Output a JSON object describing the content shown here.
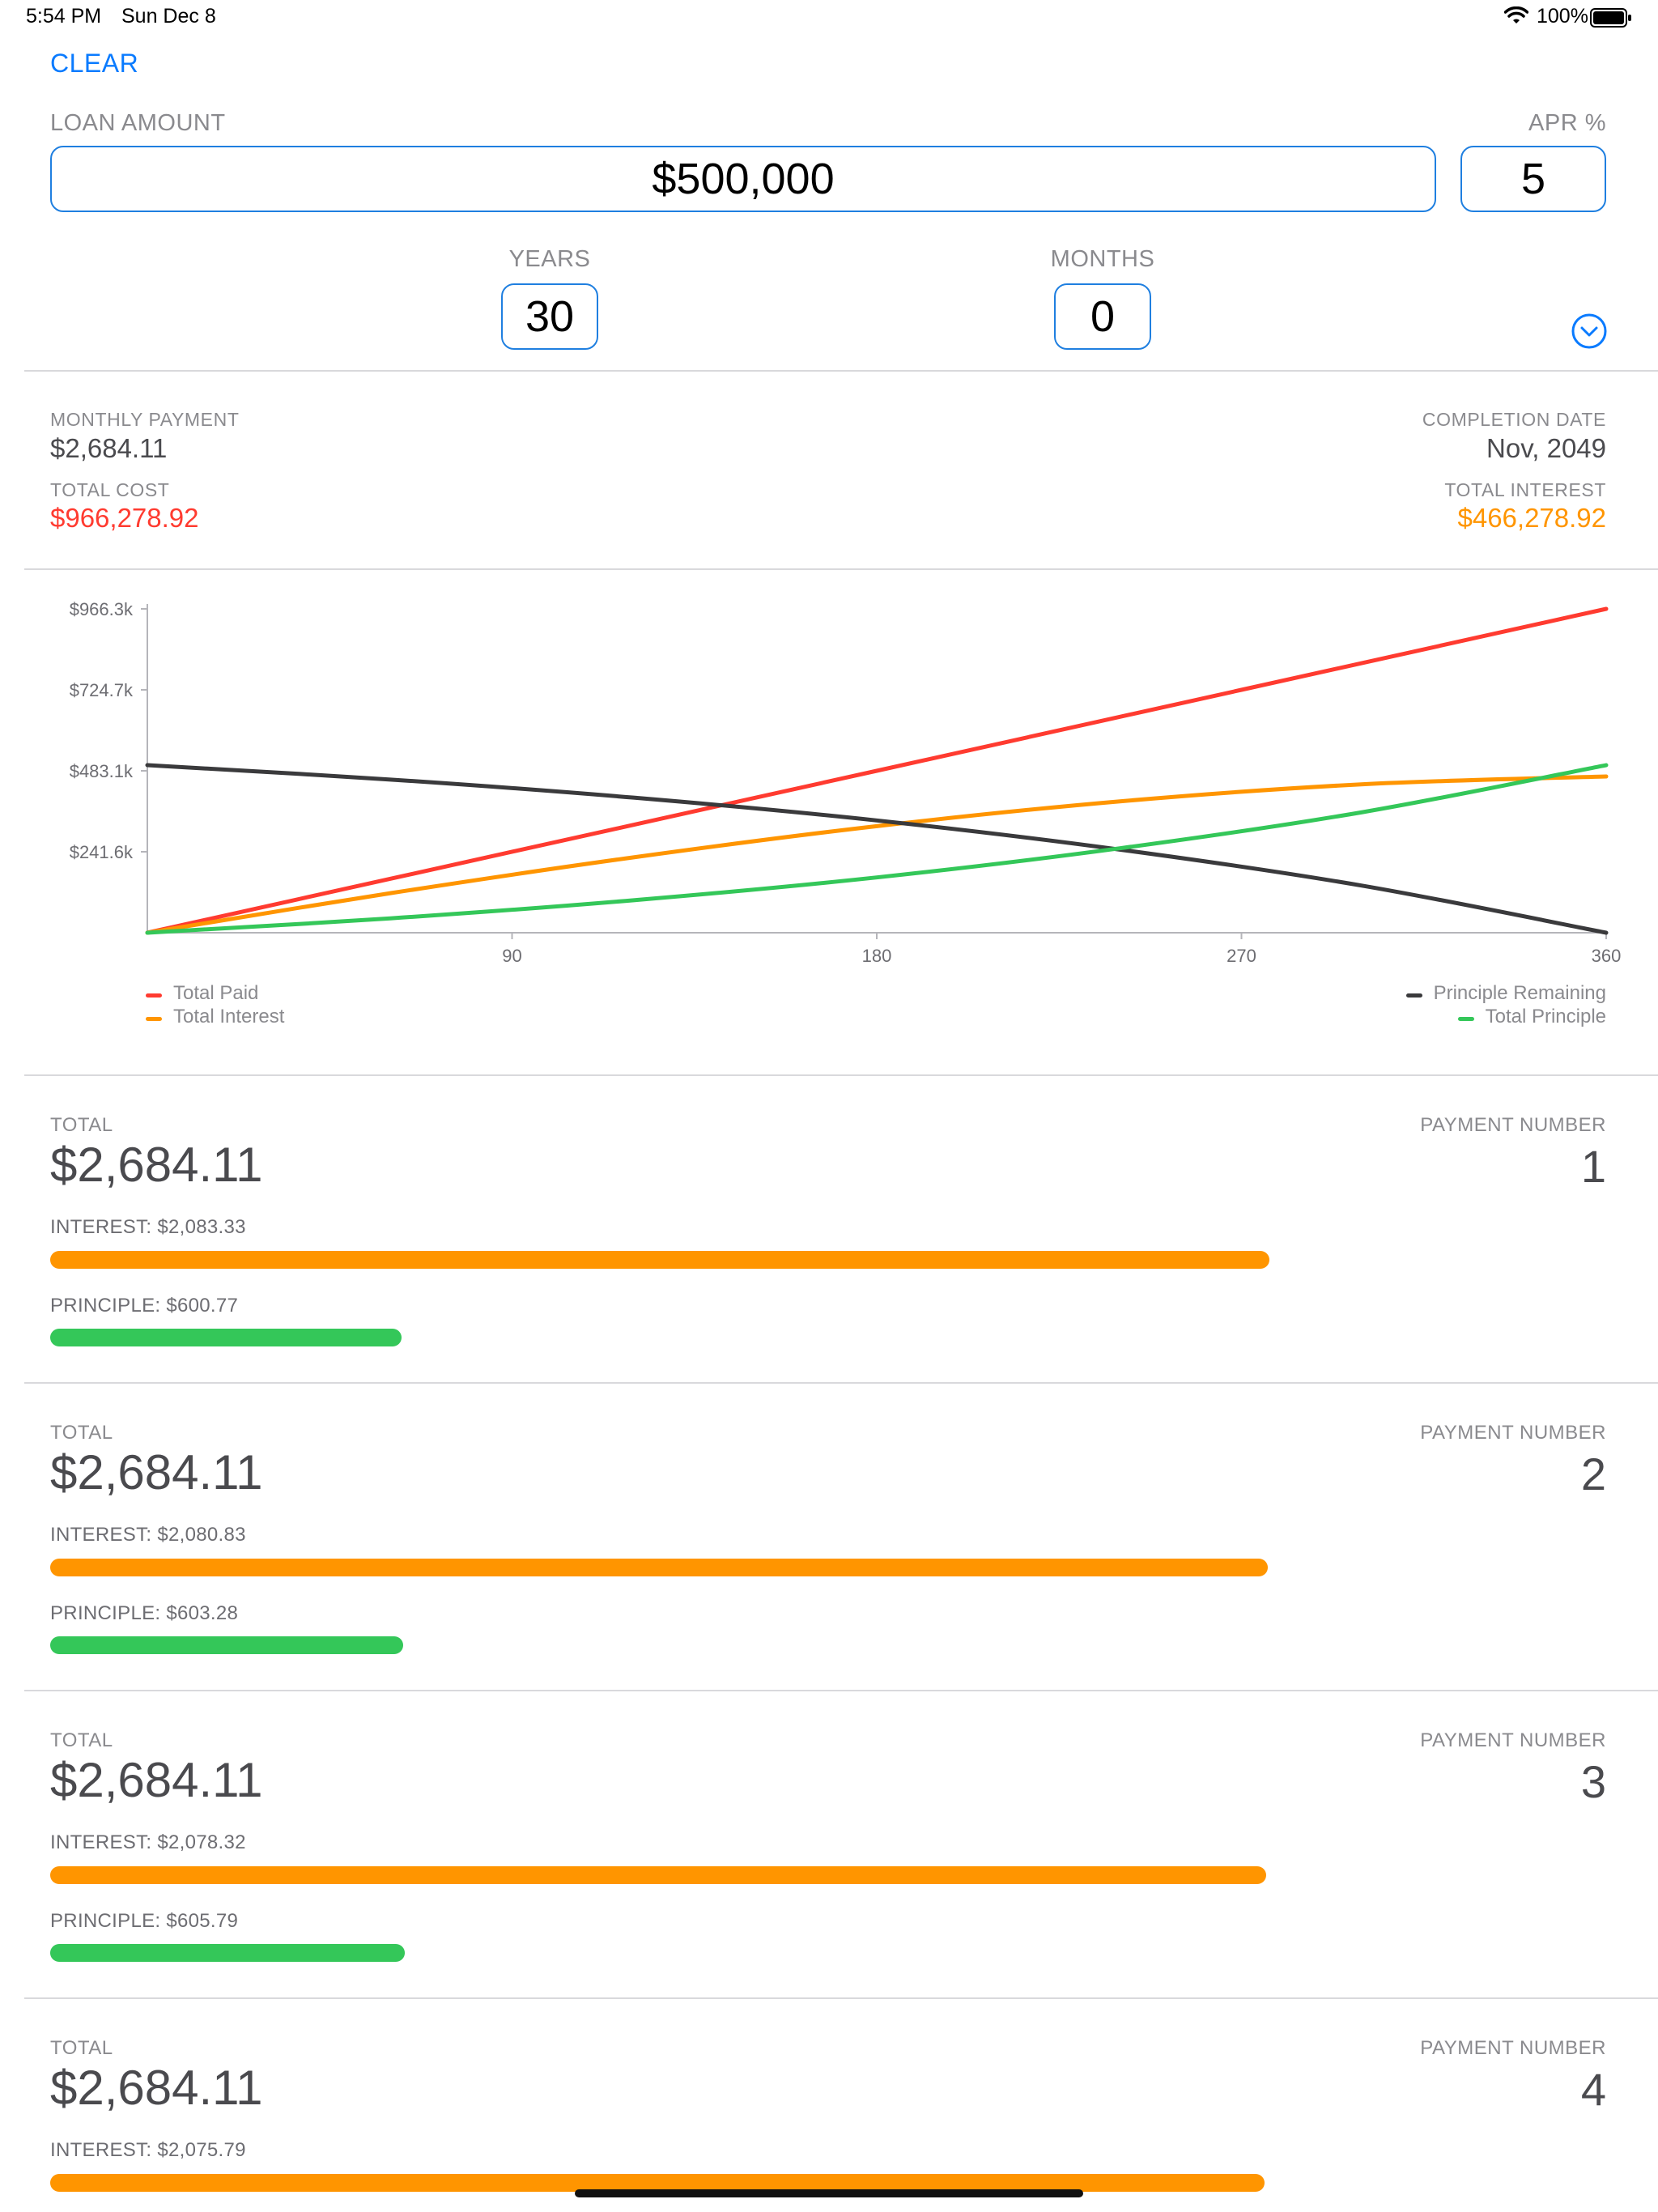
{
  "status": {
    "time": "5:54 PM",
    "date": "Sun Dec 8",
    "battery": "100%"
  },
  "header": {
    "clear_label": "CLEAR",
    "loan_amount_label": "LOAN AMOUNT",
    "loan_amount_value": "$500,000",
    "apr_label": "APR %",
    "apr_value": "5",
    "years_label": "YEARS",
    "years_value": "30",
    "months_label": "MONTHS",
    "months_value": "0"
  },
  "summary": {
    "monthly_payment_label": "MONTHLY PAYMENT",
    "monthly_payment_value": "$2,684.11",
    "completion_date_label": "COMPLETION DATE",
    "completion_date_value": "Nov, 2049",
    "total_cost_label": "TOTAL COST",
    "total_cost_value": "$966,278.92",
    "total_interest_label": "TOTAL INTEREST",
    "total_interest_value": "$466,278.92"
  },
  "colors": {
    "accent": "#0a7bff",
    "total_paid": "#ff3b30",
    "total_interest": "#ff9500",
    "principle_remaining": "#3a3a3c",
    "total_principle": "#34c759"
  },
  "chart_data": {
    "type": "line",
    "xlim": [
      0,
      360
    ],
    "ylim": [
      0,
      966278.92
    ],
    "x_ticks": [
      "90",
      "180",
      "270",
      "360"
    ],
    "y_ticks": [
      "$966.3k",
      "$724.7k",
      "$483.1k",
      "$241.6k"
    ],
    "grid": false,
    "legend": [
      "Total Paid",
      "Total Interest",
      "Principle Remaining",
      "Total Principle"
    ],
    "series": [
      {
        "name": "Total Paid",
        "x": [
          0,
          60,
          120,
          180,
          240,
          300,
          360
        ],
        "y": [
          0,
          161046,
          322093,
          483139,
          644186,
          805232,
          966279
        ]
      },
      {
        "name": "Total Interest",
        "x": [
          0,
          60,
          120,
          180,
          240,
          300,
          360
        ],
        "y": [
          0,
          118000,
          225000,
          318000,
          392000,
          443000,
          466279
        ]
      },
      {
        "name": "Principle Remaining",
        "x": [
          0,
          60,
          120,
          180,
          240,
          300,
          360
        ],
        "y": [
          500000,
          457000,
          403000,
          335000,
          248000,
          140000,
          0
        ]
      },
      {
        "name": "Total Principle",
        "x": [
          0,
          60,
          120,
          180,
          240,
          300,
          360
        ],
        "y": [
          0,
          43000,
          97000,
          165000,
          252000,
          360000,
          500000
        ]
      }
    ]
  },
  "payments": [
    {
      "total_label": "TOTAL",
      "total": "$2,684.11",
      "number_label": "PAYMENT NUMBER",
      "number": "1",
      "interest_text": "INTEREST: $2,083.33",
      "principle_text": "PRINCIPLE: $600.77",
      "interest_value": 2083.33,
      "principle_value": 600.77
    },
    {
      "total_label": "TOTAL",
      "total": "$2,684.11",
      "number_label": "PAYMENT NUMBER",
      "number": "2",
      "interest_text": "INTEREST: $2,080.83",
      "principle_text": "PRINCIPLE: $603.28",
      "interest_value": 2080.83,
      "principle_value": 603.28
    },
    {
      "total_label": "TOTAL",
      "total": "$2,684.11",
      "number_label": "PAYMENT NUMBER",
      "number": "3",
      "interest_text": "INTEREST: $2,078.32",
      "principle_text": "PRINCIPLE: $605.79",
      "interest_value": 2078.32,
      "principle_value": 605.79
    },
    {
      "total_label": "TOTAL",
      "total": "$2,684.11",
      "number_label": "PAYMENT NUMBER",
      "number": "4",
      "interest_text": "INTEREST: $2,075.79",
      "principle_text": "",
      "interest_value": 2075.79,
      "principle_value": 0
    }
  ]
}
